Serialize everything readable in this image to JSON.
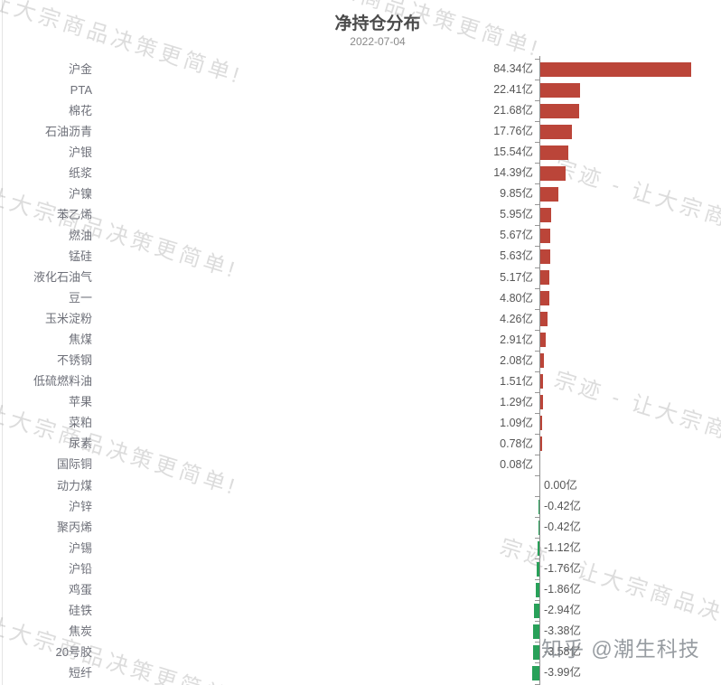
{
  "title": "净持仓分布",
  "subtitle": "2022-07-04",
  "watermark": {
    "brand_text": "宗迹 - 让大宗商品决策更简单!",
    "attribution": "知乎 @潮生科技"
  },
  "colors": {
    "positive_bar": "#bb4539",
    "negative_bar": "#28a159",
    "axis": "#8f8f8f",
    "category_label": "#6e7079",
    "value_label": "#565656",
    "title": "#4a4a4a",
    "subtitle": "#8a8a8a"
  },
  "chart_data": {
    "type": "bar",
    "orientation": "horizontal",
    "title": "净持仓分布",
    "subtitle": "2022-07-04",
    "unit": "亿",
    "value_axis_zero_at_right_area": true,
    "grid": false,
    "categories": [
      "沪金",
      "PTA",
      "棉花",
      "石油沥青",
      "沪银",
      "纸浆",
      "沪镍",
      "苯乙烯",
      "燃油",
      "锰硅",
      "液化石油气",
      "豆一",
      "玉米淀粉",
      "焦煤",
      "不锈钢",
      "低硫燃料油",
      "苹果",
      "菜粕",
      "尿素",
      "国际铜",
      "动力煤",
      "沪锌",
      "聚丙烯",
      "沪锡",
      "沪铅",
      "鸡蛋",
      "硅铁",
      "焦炭",
      "20号胶",
      "短纤"
    ],
    "values": [
      84.34,
      22.41,
      21.68,
      17.76,
      15.54,
      14.39,
      9.85,
      5.95,
      5.67,
      5.63,
      5.17,
      4.8,
      4.26,
      2.91,
      2.08,
      1.51,
      1.29,
      1.09,
      0.78,
      0.08,
      0.0,
      -0.42,
      -0.42,
      -1.12,
      -1.76,
      -1.86,
      -2.94,
      -3.38,
      -3.58,
      -3.99
    ],
    "value_labels": [
      "84.34亿",
      "22.41亿",
      "21.68亿",
      "17.76亿",
      "15.54亿",
      "14.39亿",
      "9.85亿",
      "5.95亿",
      "5.67亿",
      "5.63亿",
      "5.17亿",
      "4.80亿",
      "4.26亿",
      "2.91亿",
      "2.08亿",
      "1.51亿",
      "1.29亿",
      "1.09亿",
      "0.78亿",
      "0.08亿",
      "0.00亿",
      "-0.42亿",
      "-0.42亿",
      "-1.12亿",
      "-1.76亿",
      "-1.86亿",
      "-2.94亿",
      "-3.38亿",
      "-3.58亿",
      "-3.99亿"
    ],
    "positive_color": "#bb4539",
    "negative_color": "#28a159",
    "legend": false
  }
}
